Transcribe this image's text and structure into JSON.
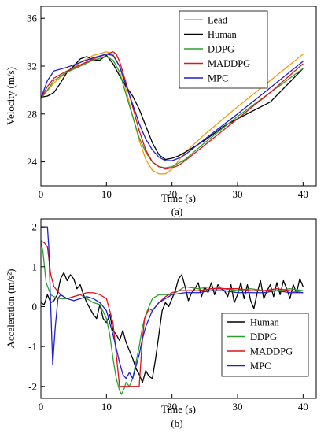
{
  "chart_data": [
    {
      "type": "line",
      "xlabel": "Time (s)",
      "ylabel": "Velocity (m/s)",
      "caption": "(a)",
      "xlim": [
        0,
        42
      ],
      "ylim": [
        22,
        37
      ],
      "xticks": [
        0,
        10,
        20,
        30,
        40
      ],
      "yticks": [
        24,
        28,
        32,
        36
      ],
      "legend_position": "top-right",
      "series": [
        {
          "name": "Lead",
          "color": "#f39c12",
          "x": [
            0,
            2,
            4,
            6,
            8,
            10,
            11,
            12,
            13,
            14,
            15,
            16,
            17,
            18,
            19,
            20,
            22,
            25,
            30,
            35,
            40
          ],
          "y": [
            29.3,
            30.6,
            31.5,
            32.3,
            32.9,
            33.2,
            33.0,
            32.0,
            30.0,
            27.8,
            25.8,
            24.2,
            23.3,
            23.0,
            23.0,
            23.4,
            24.8,
            26.3,
            28.6,
            30.8,
            33.0
          ]
        },
        {
          "name": "Human",
          "color": "#000000",
          "x": [
            0,
            1,
            2,
            3,
            4,
            5,
            6,
            7,
            8,
            9,
            10,
            11,
            12,
            13,
            14,
            15,
            16,
            17,
            18,
            19,
            20,
            21,
            22,
            25,
            28,
            30,
            35,
            40
          ],
          "y": [
            29.4,
            29.5,
            29.8,
            30.6,
            31.5,
            32.0,
            32.6,
            32.8,
            32.5,
            32.5,
            32.9,
            32.2,
            31.2,
            30.3,
            29.5,
            28.4,
            27.0,
            25.6,
            24.6,
            24.2,
            24.3,
            24.5,
            24.8,
            25.8,
            27.0,
            27.6,
            29.0,
            31.8
          ]
        },
        {
          "name": "DDPG",
          "color": "#2ca02c",
          "x": [
            0,
            1,
            2,
            4,
            6,
            8,
            10,
            11,
            12,
            13,
            14,
            15,
            16,
            17,
            18,
            19,
            20,
            22,
            25,
            30,
            35,
            40
          ],
          "y": [
            29.3,
            30.0,
            30.8,
            31.5,
            32.0,
            32.5,
            32.8,
            32.5,
            31.5,
            29.6,
            27.8,
            26.0,
            24.8,
            24.0,
            23.6,
            23.5,
            23.6,
            24.2,
            25.6,
            27.8,
            29.8,
            31.8
          ]
        },
        {
          "name": "MADDPG",
          "color": "#e3101e",
          "x": [
            0,
            1,
            2,
            4,
            6,
            8,
            10,
            11,
            11.5,
            12,
            13,
            14,
            15,
            16,
            17,
            18,
            19,
            20,
            21,
            22,
            25,
            30,
            35,
            40
          ],
          "y": [
            29.3,
            30.3,
            31.0,
            31.6,
            32.1,
            32.6,
            33.0,
            33.2,
            33.0,
            32.4,
            30.6,
            28.6,
            26.6,
            25.0,
            24.0,
            23.6,
            23.4,
            23.5,
            23.7,
            24.1,
            25.4,
            27.6,
            29.8,
            32.2
          ]
        },
        {
          "name": "MPC",
          "color": "#1f1fd1",
          "x": [
            0,
            1,
            2,
            4,
            6,
            8,
            10,
            11,
            12,
            13,
            14,
            15,
            16,
            17,
            18,
            19,
            20,
            21,
            22,
            25,
            30,
            35,
            40
          ],
          "y": [
            29.3,
            30.8,
            31.6,
            31.9,
            32.3,
            32.7,
            33.0,
            32.9,
            32.0,
            30.4,
            28.8,
            27.2,
            25.9,
            25.0,
            24.4,
            24.1,
            24.1,
            24.3,
            24.6,
            25.9,
            28.0,
            30.2,
            32.4
          ]
        }
      ]
    },
    {
      "type": "line",
      "xlabel": "Time (s)",
      "ylabel": "Acceleration (m/s²)",
      "caption": "(b)",
      "xlim": [
        0,
        42
      ],
      "ylim": [
        -2.3,
        2.2
      ],
      "xticks": [
        0,
        10,
        20,
        30,
        40
      ],
      "yticks": [
        -2,
        -1,
        0,
        1,
        2
      ],
      "legend_position": "bottom-right",
      "series": [
        {
          "name": "Human",
          "color": "#000000",
          "x": [
            0,
            0.5,
            1,
            1.5,
            2,
            2.5,
            3,
            3.5,
            4,
            4.5,
            5,
            5.5,
            6,
            6.5,
            7,
            7.5,
            8,
            8.5,
            9,
            9.5,
            10,
            10.5,
            11,
            11.5,
            12,
            12.5,
            13,
            13.5,
            14,
            14.5,
            15,
            15.5,
            16,
            16.5,
            17,
            17.5,
            18,
            18.5,
            19,
            19.5,
            20,
            20.5,
            21,
            21.5,
            22,
            22.5,
            23,
            23.5,
            24,
            24.5,
            25,
            25.5,
            26,
            26.5,
            27,
            27.5,
            28,
            28.5,
            29,
            29.5,
            30,
            30.5,
            31,
            31.5,
            32,
            32.5,
            33,
            33.5,
            34,
            34.5,
            35,
            35.5,
            36,
            36.5,
            37,
            37.5,
            38,
            38.5,
            39,
            39.5,
            40
          ],
          "y": [
            0.1,
            0.05,
            0.3,
            0.1,
            0.15,
            0.3,
            0.7,
            0.85,
            0.65,
            0.8,
            0.7,
            0.45,
            0.55,
            0.3,
            0.1,
            -0.05,
            -0.2,
            -0.3,
            0.05,
            -0.3,
            -0.4,
            -0.2,
            -0.6,
            -0.7,
            -0.85,
            -0.6,
            -0.9,
            -1.1,
            -1.3,
            -1.55,
            -1.7,
            -1.9,
            -1.6,
            -1.75,
            -1.8,
            -1.3,
            -0.7,
            -0.1,
            0.1,
            0.0,
            0.2,
            0.4,
            0.7,
            0.8,
            0.5,
            0.15,
            0.35,
            0.45,
            0.6,
            0.25,
            0.5,
            0.35,
            0.6,
            0.3,
            0.55,
            0.45,
            0.4,
            0.25,
            0.55,
            0.1,
            0.3,
            0.6,
            0.2,
            0.55,
            0.15,
            -0.05,
            0.35,
            0.65,
            0.2,
            0.4,
            0.55,
            0.25,
            0.6,
            0.3,
            0.65,
            0.45,
            0.2,
            0.55,
            0.35,
            0.7,
            0.5
          ]
        },
        {
          "name": "DDPG",
          "color": "#2ca02c",
          "x": [
            0,
            0.3,
            0.8,
            1.5,
            2,
            3,
            4,
            5,
            6,
            7,
            8,
            9,
            10,
            10.5,
            11,
            11.5,
            12,
            12.3,
            12.7,
            13,
            13.5,
            14,
            14.5,
            15,
            15.5,
            16,
            17,
            18,
            19,
            20,
            21,
            22,
            24,
            26,
            28,
            30,
            32,
            34,
            36,
            38,
            40
          ],
          "y": [
            1.6,
            1.4,
            0.6,
            0.3,
            0.25,
            0.2,
            0.2,
            0.25,
            0.3,
            0.2,
            0.1,
            0.05,
            -0.3,
            -0.7,
            -1.3,
            -1.8,
            -2.1,
            -2.2,
            -2.05,
            -1.9,
            -2.0,
            -1.8,
            -1.4,
            -1.0,
            -0.5,
            -0.2,
            0.2,
            0.3,
            0.3,
            0.3,
            0.4,
            0.5,
            0.45,
            0.5,
            0.45,
            0.4,
            0.45,
            0.4,
            0.4,
            0.45,
            0.4
          ]
        },
        {
          "name": "MADDPG",
          "color": "#e3101e",
          "x": [
            0,
            0.5,
            1,
            1.5,
            2,
            3,
            4,
            5,
            6,
            7,
            8,
            9,
            10,
            11,
            12,
            13,
            14,
            15,
            15.4,
            15.8,
            16.5,
            17,
            18,
            19,
            20,
            21,
            22,
            24,
            26,
            28,
            30,
            32,
            34,
            36,
            38,
            40
          ],
          "y": [
            1.65,
            1.6,
            1.5,
            0.8,
            0.5,
            0.3,
            0.2,
            0.25,
            0.3,
            0.35,
            0.35,
            0.3,
            0.2,
            -0.4,
            -2.0,
            -2.0,
            -2.0,
            -2.0,
            -1.0,
            -0.3,
            -0.05,
            -0.1,
            0.1,
            0.25,
            0.35,
            0.4,
            0.4,
            0.4,
            0.45,
            0.45,
            0.45,
            0.4,
            0.4,
            0.45,
            0.4,
            0.35
          ]
        },
        {
          "name": "MPC",
          "color": "#1f1fd1",
          "x": [
            0,
            1,
            1.2,
            1.5,
            1.8,
            2.2,
            2.6,
            3,
            4,
            5,
            6,
            7,
            8,
            9,
            10,
            11,
            12,
            12.5,
            13,
            13.5,
            14,
            14.5,
            15,
            15.5,
            16,
            16.5,
            17,
            18,
            19,
            20,
            22,
            24,
            26,
            28,
            30,
            32,
            34,
            36,
            38,
            40
          ],
          "y": [
            2.0,
            2.0,
            1.5,
            0.0,
            -1.45,
            -0.5,
            0.2,
            0.3,
            0.2,
            0.15,
            0.2,
            0.25,
            0.2,
            0.1,
            -0.1,
            -0.7,
            -1.4,
            -1.7,
            -1.8,
            -1.65,
            -1.8,
            -1.5,
            -1.2,
            -0.8,
            -0.5,
            -0.3,
            -0.1,
            0.1,
            0.2,
            0.3,
            0.35,
            0.35,
            0.4,
            0.4,
            0.35,
            0.35,
            0.35,
            0.4,
            0.35,
            0.35
          ]
        }
      ]
    }
  ]
}
